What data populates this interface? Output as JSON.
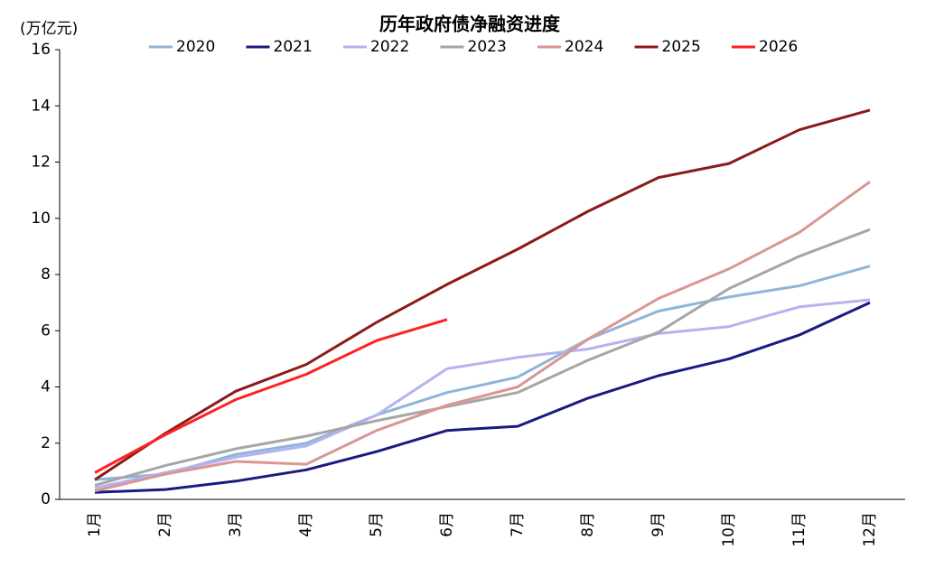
{
  "chart_data": {
    "type": "line",
    "title": "历年政府债净融资进度",
    "y_label": "(万亿元)",
    "categories": [
      "1月",
      "2月",
      "3月",
      "4月",
      "5月",
      "6月",
      "7月",
      "8月",
      "9月",
      "10月",
      "11月",
      "12月"
    ],
    "series": [
      {
        "name": "2020",
        "color": "#8fb4d9",
        "values": [
          0.7,
          0.9,
          1.6,
          2.0,
          3.0,
          3.8,
          4.35,
          5.7,
          6.7,
          7.2,
          7.6,
          8.3
        ]
      },
      {
        "name": "2021",
        "color": "#1a1a80",
        "values": [
          0.25,
          0.35,
          0.65,
          1.05,
          1.7,
          2.45,
          2.6,
          3.6,
          4.4,
          5.0,
          5.85,
          7.0
        ]
      },
      {
        "name": "2022",
        "color": "#b3b3f2",
        "values": [
          0.4,
          0.95,
          1.5,
          1.9,
          3.0,
          4.65,
          5.05,
          5.35,
          5.9,
          6.15,
          6.85,
          7.1
        ]
      },
      {
        "name": "2023",
        "color": "#a6a6a6",
        "values": [
          0.5,
          1.2,
          1.8,
          2.25,
          2.8,
          3.3,
          3.8,
          4.95,
          5.95,
          7.5,
          8.65,
          9.6
        ]
      },
      {
        "name": "2024",
        "color": "#d99694",
        "values": [
          0.3,
          0.9,
          1.35,
          1.25,
          2.45,
          3.35,
          4.0,
          5.7,
          7.15,
          8.2,
          9.5,
          11.3
        ]
      },
      {
        "name": "2025",
        "color": "#8b1a1a",
        "values": [
          0.7,
          2.35,
          3.85,
          4.8,
          6.3,
          7.65,
          8.9,
          10.25,
          11.45,
          11.95,
          13.15,
          13.85
        ]
      },
      {
        "name": "2026",
        "color": "#ff2020",
        "values": [
          0.95,
          2.3,
          3.55,
          4.45,
          5.65,
          6.4,
          null,
          null,
          null,
          null,
          null,
          null
        ]
      }
    ],
    "ylim": [
      0,
      16
    ],
    "yticks": [
      0,
      2,
      4,
      6,
      8,
      10,
      12,
      14,
      16
    ],
    "grid": false,
    "legend": "top"
  }
}
